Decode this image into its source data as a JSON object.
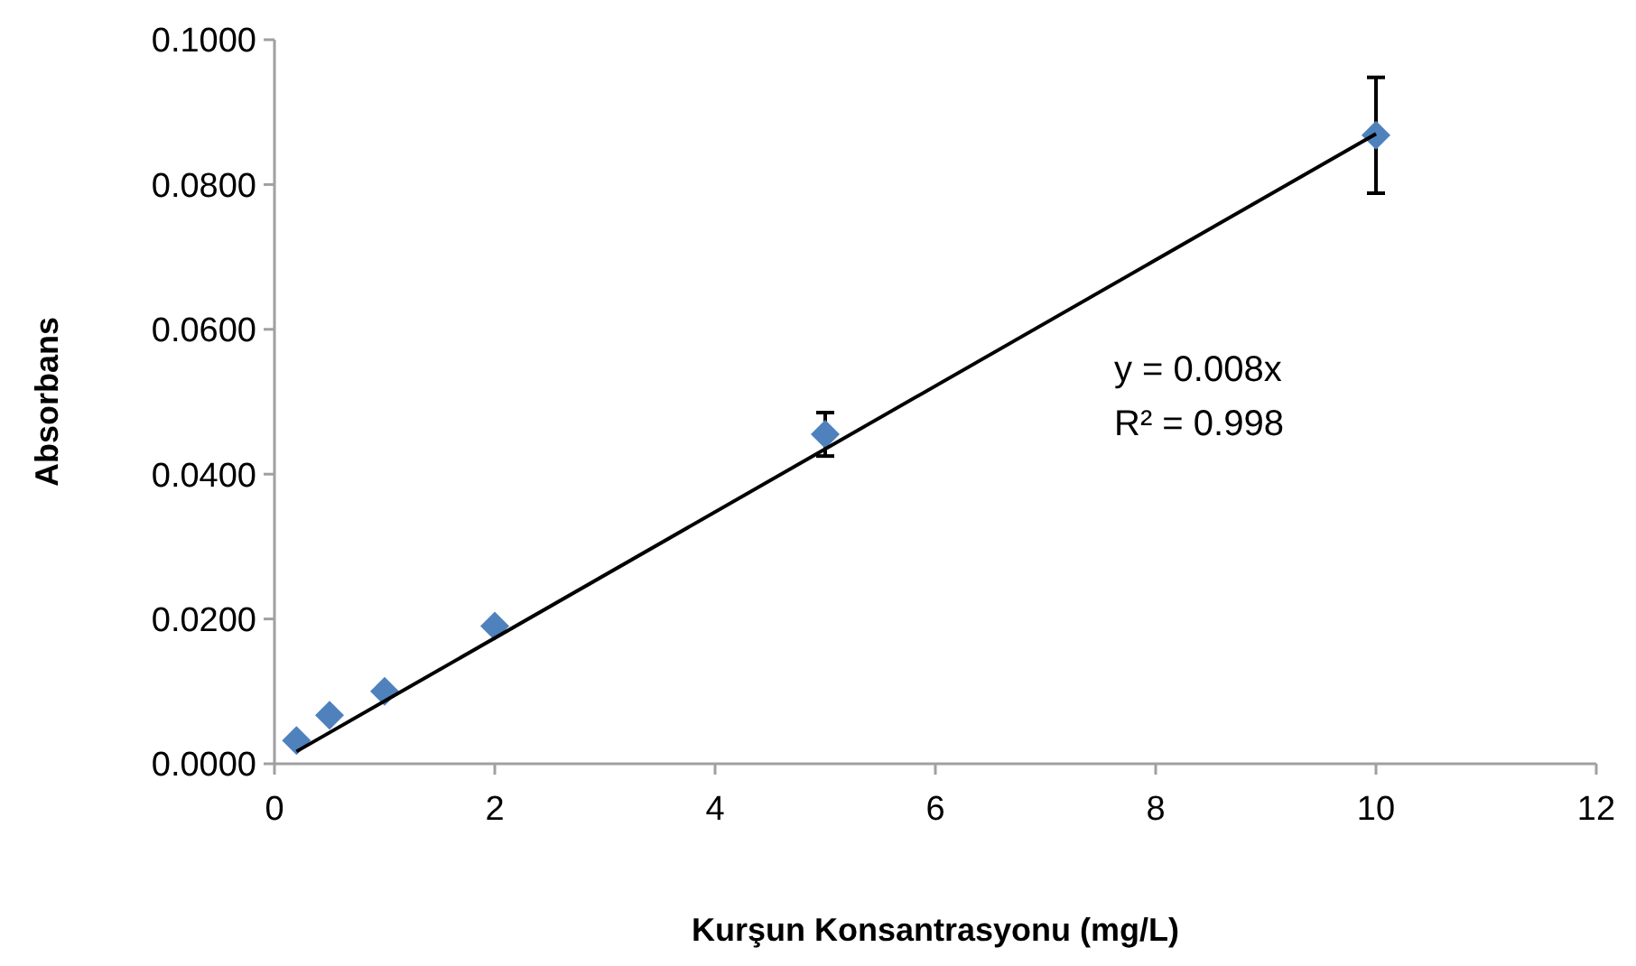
{
  "chart_data": {
    "type": "scatter",
    "xlabel": "Kurşun Konsantrasyonu (mg/L)",
    "ylabel": "Absorbans",
    "xlim": [
      0,
      12
    ],
    "xticks": [
      0,
      2,
      4,
      6,
      8,
      10,
      12
    ],
    "ylim": [
      0,
      0.1
    ],
    "yticks": [
      {
        "value": 0,
        "label": "0.0000"
      },
      {
        "value": 0.02,
        "label": "0.0200"
      },
      {
        "value": 0.04,
        "label": "0.0400"
      },
      {
        "value": 0.06,
        "label": "0.0600"
      },
      {
        "value": 0.08,
        "label": "0.0800"
      },
      {
        "value": 0.1,
        "label": "0.1000"
      }
    ],
    "grid": false,
    "series": [
      {
        "marker": "diamond",
        "color": "#4f81bd",
        "x": [
          0.2,
          0.5,
          1,
          2,
          5,
          10
        ],
        "values": [
          0.0032,
          0.0067,
          0.01,
          0.019,
          0.0455,
          0.0868
        ],
        "errors": [
          null,
          null,
          null,
          null,
          0.003,
          0.008
        ]
      },
      {
        "type": "line",
        "color": "#000000",
        "x": [
          0.2,
          10
        ],
        "values": [
          0.0017,
          0.087
        ],
        "line_style": "solid"
      }
    ],
    "annotations": [
      "y = 0.008x",
      "R² = 0.998"
    ]
  }
}
